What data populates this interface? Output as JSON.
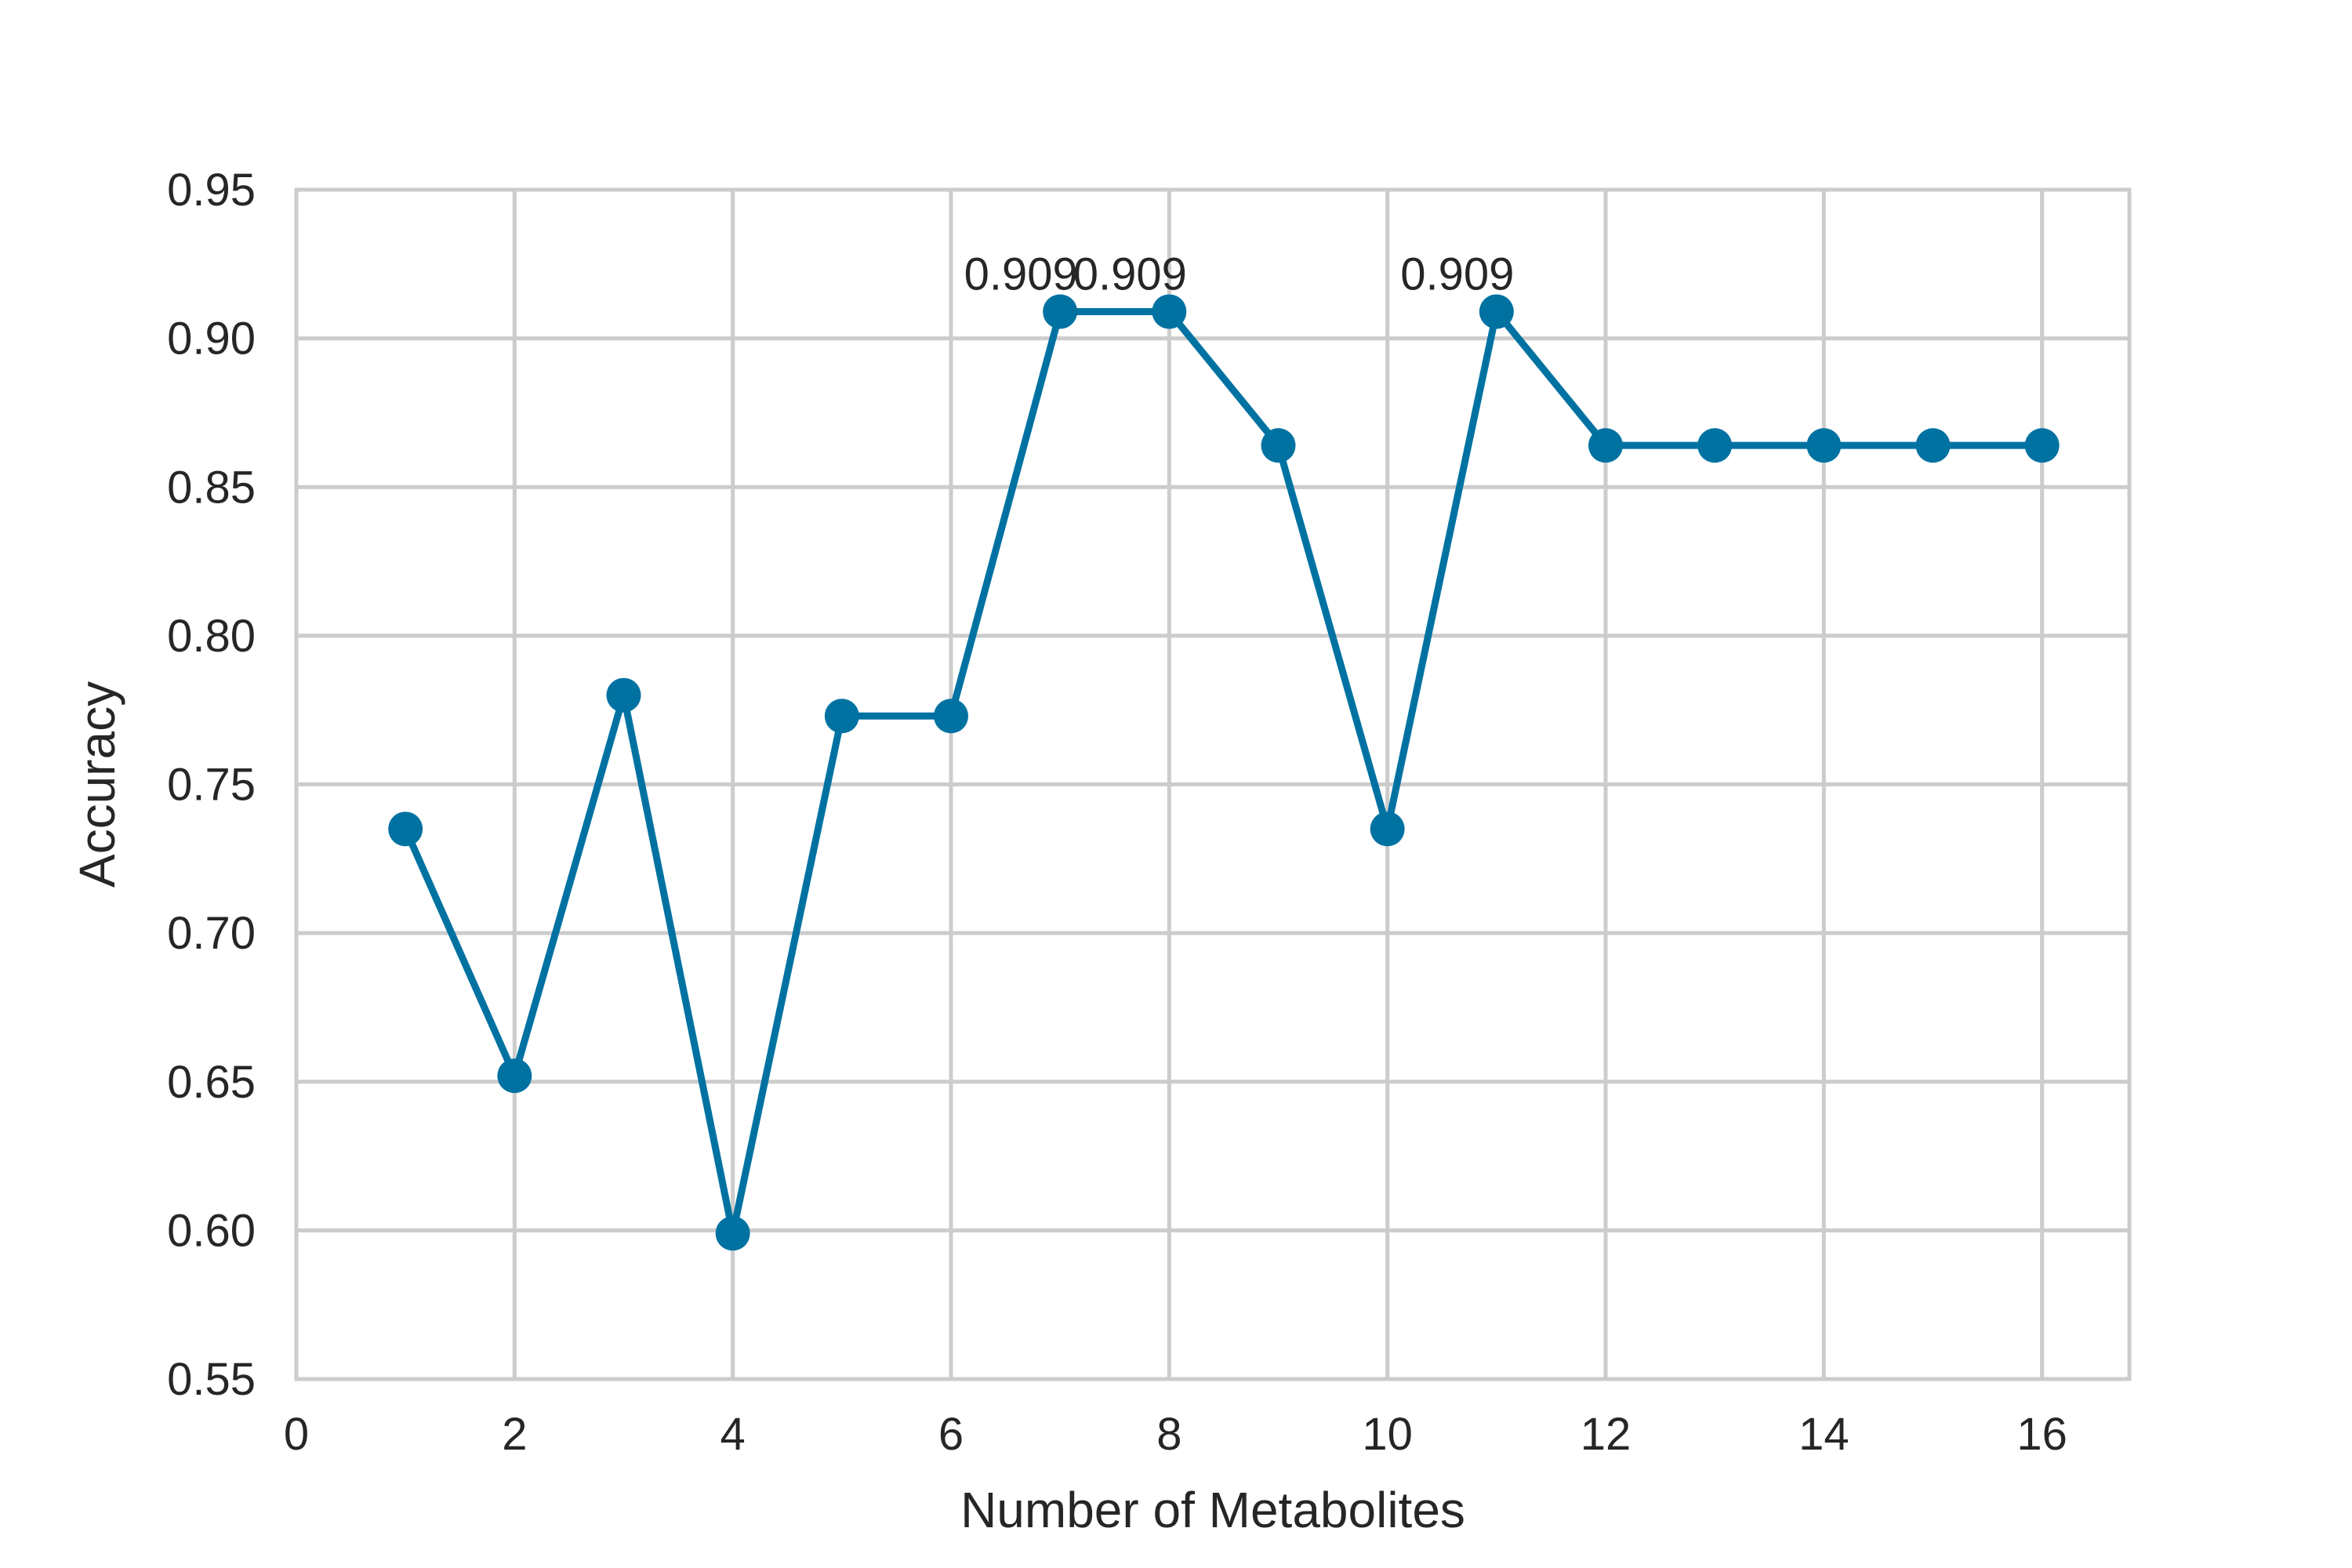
{
  "chart_data": {
    "type": "line",
    "title": "",
    "xlabel": "Number of Metabolites",
    "ylabel": "Accuracy",
    "xlim": [
      0,
      16.8
    ],
    "ylim": [
      0.55,
      0.95
    ],
    "xticks": [
      0,
      2,
      4,
      6,
      8,
      10,
      12,
      14,
      16
    ],
    "yticks": [
      0.55,
      0.6,
      0.65,
      0.7,
      0.75,
      0.8,
      0.85,
      0.9,
      0.95
    ],
    "xtick_labels": [
      "0",
      "2",
      "4",
      "6",
      "8",
      "10",
      "12",
      "14",
      "16"
    ],
    "ytick_labels": [
      "0.55",
      "0.60",
      "0.65",
      "0.70",
      "0.75",
      "0.80",
      "0.85",
      "0.90",
      "0.95"
    ],
    "grid": true,
    "color": "#0072a2",
    "series": [
      {
        "x": [
          1,
          2,
          3,
          4,
          5,
          6,
          7,
          8,
          9,
          10,
          11,
          12,
          13,
          14,
          15,
          16
        ],
        "values": [
          0.735,
          0.652,
          0.78,
          0.599,
          0.773,
          0.773,
          0.909,
          0.909,
          0.864,
          0.735,
          0.909,
          0.864,
          0.864,
          0.864,
          0.864,
          0.864
        ]
      }
    ],
    "annotations": [
      {
        "x": 7,
        "y": 0.909,
        "text": "0.909"
      },
      {
        "x": 8,
        "y": 0.909,
        "text": "0.909"
      },
      {
        "x": 11,
        "y": 0.909,
        "text": "0.909"
      }
    ]
  }
}
